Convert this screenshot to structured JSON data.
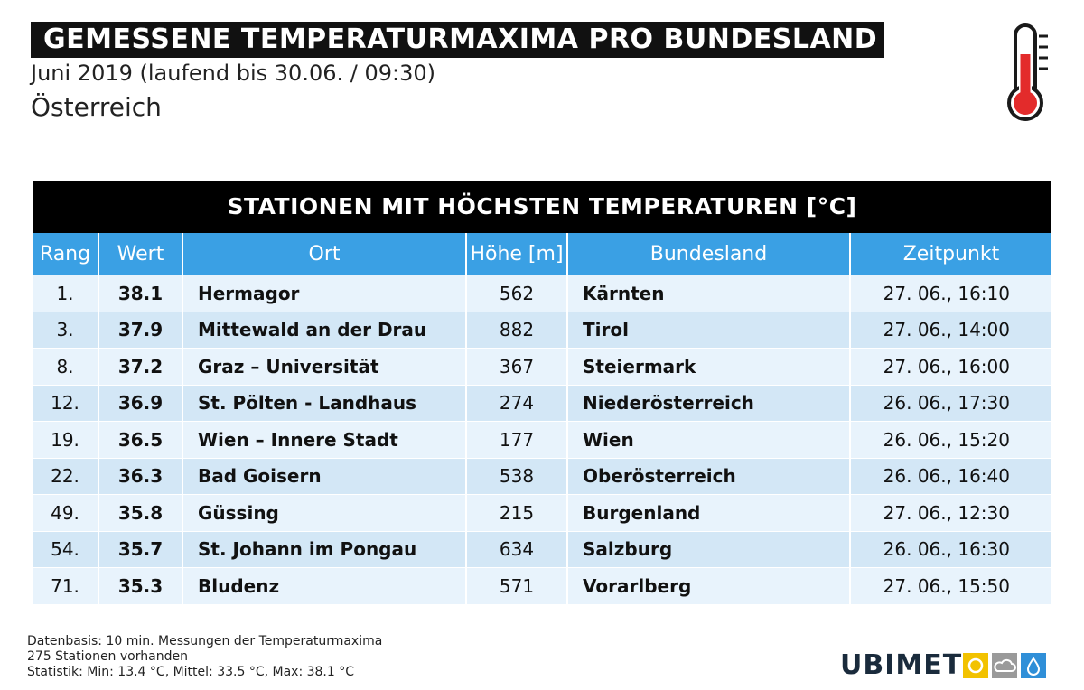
{
  "header": {
    "title": "GEMESSENE TEMPERATURMAXIMA PRO BUNDESLAND",
    "subtitle": "Juni 2019 (laufend bis 30.06. / 09:30)",
    "region": "Österreich"
  },
  "icons": {
    "thermometer": "thermometer-icon",
    "logo_icons": [
      "sun-icon",
      "cloud-icon",
      "raindrop-icon"
    ]
  },
  "colors": {
    "header_blue": "#3aa0e4",
    "row_light": "#e8f3fc",
    "row_dark": "#d3e7f6",
    "thermometer_red": "#e32b2b",
    "logo_yellow": "#f2c200",
    "logo_grey": "#9a9a9a",
    "logo_blue": "#2f8fd8"
  },
  "chart_data": {
    "type": "table",
    "title": "STATIONEN MIT HÖCHSTEN TEMPERATUREN [°C]",
    "columns": [
      "Rang",
      "Wert",
      "Ort",
      "Höhe [m]",
      "Bundesland",
      "Zeitpunkt"
    ],
    "rows": [
      [
        "1.",
        "38.1",
        "Hermagor",
        "562",
        "Kärnten",
        "27. 06., 16:10"
      ],
      [
        "3.",
        "37.9",
        "Mittewald an der Drau",
        "882",
        "Tirol",
        "27. 06., 14:00"
      ],
      [
        "8.",
        "37.2",
        "Graz – Universität",
        "367",
        "Steiermark",
        "27. 06., 16:00"
      ],
      [
        "12.",
        "36.9",
        "St. Pölten - Landhaus",
        "274",
        "Niederösterreich",
        "26. 06., 17:30"
      ],
      [
        "19.",
        "36.5",
        "Wien – Innere Stadt",
        "177",
        "Wien",
        "26. 06., 15:20"
      ],
      [
        "22.",
        "36.3",
        "Bad Goisern",
        "538",
        "Oberösterreich",
        "26. 06., 16:40"
      ],
      [
        "49.",
        "35.8",
        "Güssing",
        "215",
        "Burgenland",
        "27. 06., 12:30"
      ],
      [
        "54.",
        "35.7",
        "St. Johann im Pongau",
        "634",
        "Salzburg",
        "26. 06., 16:30"
      ],
      [
        "71.",
        "35.3",
        "Bludenz",
        "571",
        "Vorarlberg",
        "27. 06., 15:50"
      ]
    ]
  },
  "footer": {
    "line1": "Datenbasis: 10 min. Messungen der Temperaturmaxima",
    "line2": "275 Stationen vorhanden",
    "line3": "Statistik: Min: 13.4 °C, Mittel: 33.5 °C, Max: 38.1 °C"
  },
  "logo": {
    "part1": "UBI",
    "part2": "MET"
  }
}
